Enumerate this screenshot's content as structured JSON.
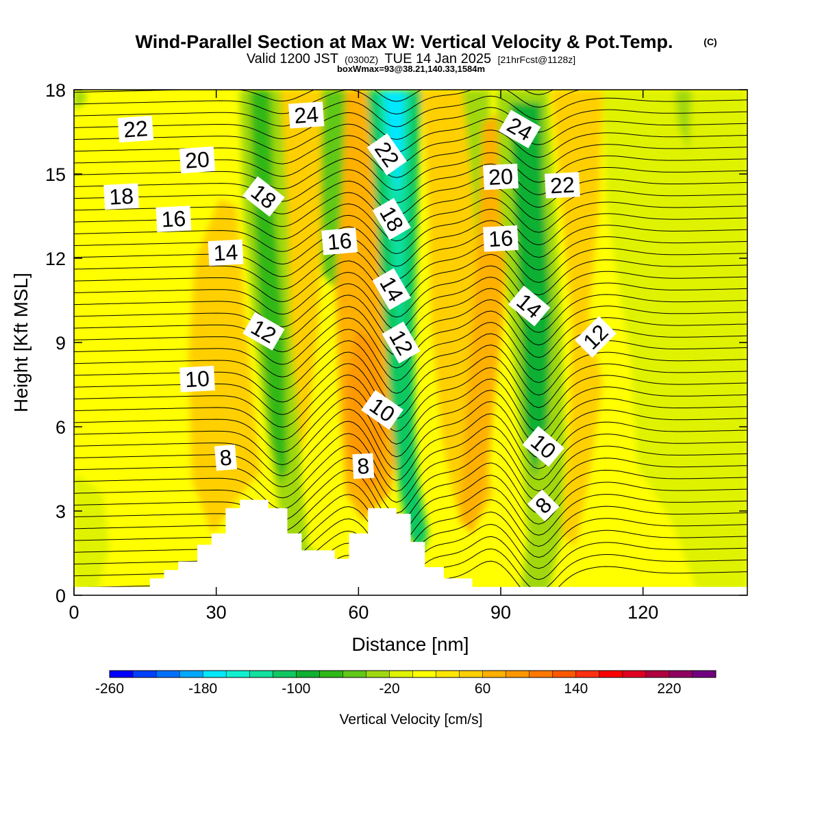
{
  "chart_data": {
    "type": "heatmap",
    "title": "Wind-Parallel Section at Max W: Vertical Velocity & Pot.Temp.",
    "title_mark": "(C)",
    "subtitle": {
      "prefix": "Valid 1200 JST",
      "utc": "(0300Z)",
      "date": "TUE 14 Jan 2025",
      "forecast": "[21hrFcst@1128z]"
    },
    "note": "boxWmax=93@38.21,140.33,1584m",
    "xlabel": "Distance [nm]",
    "ylabel": "Height [Kft MSL]",
    "xlim": [
      0,
      142
    ],
    "ylim": [
      0,
      18
    ],
    "x_ticks": [
      0,
      30,
      60,
      90,
      120
    ],
    "y_ticks": [
      0,
      3,
      6,
      9,
      12,
      15,
      18
    ],
    "grid": false,
    "colorbar": {
      "label": "Vertical Velocity [cm/s]",
      "range": [
        -260,
        260
      ],
      "tick_labels": [
        -260,
        -180,
        -100,
        -20,
        60,
        140,
        220
      ],
      "colors": [
        "#0000ff",
        "#0040ff",
        "#0070ff",
        "#00a8ff",
        "#00e8ff",
        "#10f0d0",
        "#10e0a0",
        "#10c860",
        "#10b030",
        "#30b818",
        "#60c818",
        "#a0d810",
        "#dff200",
        "#ffff00",
        "#ffe600",
        "#ffcf00",
        "#ffb000",
        "#ff9800",
        "#ff7800",
        "#ff5800",
        "#ff3010",
        "#ff0000",
        "#e00020",
        "#b00040",
        "#900060",
        "#700080"
      ]
    },
    "terrain_kft": [
      [
        0,
        0.3
      ],
      [
        16,
        0.3
      ],
      [
        16,
        0.6
      ],
      [
        19,
        0.6
      ],
      [
        19,
        0.9
      ],
      [
        22,
        0.9
      ],
      [
        22,
        1.2
      ],
      [
        26,
        1.2
      ],
      [
        26,
        1.8
      ],
      [
        29,
        1.8
      ],
      [
        29,
        2.2
      ],
      [
        32,
        2.2
      ],
      [
        32,
        3.1
      ],
      [
        35,
        3.1
      ],
      [
        35,
        3.4
      ],
      [
        41,
        3.4
      ],
      [
        41,
        3.1
      ],
      [
        45,
        3.1
      ],
      [
        45,
        2.2
      ],
      [
        48,
        2.2
      ],
      [
        48,
        1.6
      ],
      [
        55,
        1.6
      ],
      [
        55,
        1.3
      ],
      [
        58,
        1.3
      ],
      [
        58,
        2.2
      ],
      [
        62,
        2.2
      ],
      [
        62,
        3.1
      ],
      [
        68,
        3.1
      ],
      [
        68,
        2.9
      ],
      [
        71,
        2.9
      ],
      [
        71,
        1.9
      ],
      [
        74,
        1.9
      ],
      [
        74,
        1.0
      ],
      [
        78,
        1.0
      ],
      [
        78,
        0.6
      ],
      [
        84,
        0.6
      ],
      [
        84,
        0.3
      ],
      [
        142,
        0.3
      ]
    ],
    "isotherm_labels": [
      {
        "text": "22",
        "x": 13,
        "y": 16.6,
        "angle": -4
      },
      {
        "text": "20",
        "x": 26,
        "y": 15.5,
        "angle": -4
      },
      {
        "text": "24",
        "x": 49,
        "y": 17.1,
        "angle": -4
      },
      {
        "text": "18",
        "x": 10,
        "y": 14.2,
        "angle": -3
      },
      {
        "text": "16",
        "x": 21,
        "y": 13.4,
        "angle": -3
      },
      {
        "text": "18",
        "x": 40,
        "y": 14.2,
        "angle": 38
      },
      {
        "text": "14",
        "x": 32,
        "y": 12.2,
        "angle": -3
      },
      {
        "text": "16",
        "x": 56,
        "y": 12.6,
        "angle": -5
      },
      {
        "text": "22",
        "x": 66,
        "y": 15.7,
        "angle": 55
      },
      {
        "text": "18",
        "x": 67,
        "y": 13.4,
        "angle": 60
      },
      {
        "text": "14",
        "x": 67,
        "y": 10.9,
        "angle": 60
      },
      {
        "text": "12",
        "x": 69,
        "y": 9.0,
        "angle": 60
      },
      {
        "text": "24",
        "x": 94,
        "y": 16.6,
        "angle": 30
      },
      {
        "text": "20",
        "x": 90,
        "y": 14.9,
        "angle": -3
      },
      {
        "text": "22",
        "x": 103,
        "y": 14.6,
        "angle": -3
      },
      {
        "text": "16",
        "x": 90,
        "y": 12.7,
        "angle": -3
      },
      {
        "text": "14",
        "x": 96,
        "y": 10.3,
        "angle": 40
      },
      {
        "text": "12",
        "x": 40,
        "y": 9.4,
        "angle": 30
      },
      {
        "text": "12",
        "x": 110,
        "y": 9.2,
        "angle": -45
      },
      {
        "text": "10",
        "x": 26,
        "y": 7.7,
        "angle": -3
      },
      {
        "text": "10",
        "x": 65,
        "y": 6.6,
        "angle": 35
      },
      {
        "text": "10",
        "x": 99,
        "y": 5.3,
        "angle": 40
      },
      {
        "text": "8",
        "x": 32,
        "y": 4.9,
        "angle": -5
      },
      {
        "text": "8",
        "x": 61,
        "y": 4.6,
        "angle": -3
      },
      {
        "text": "8",
        "x": 99,
        "y": 3.2,
        "angle": -45
      }
    ]
  }
}
